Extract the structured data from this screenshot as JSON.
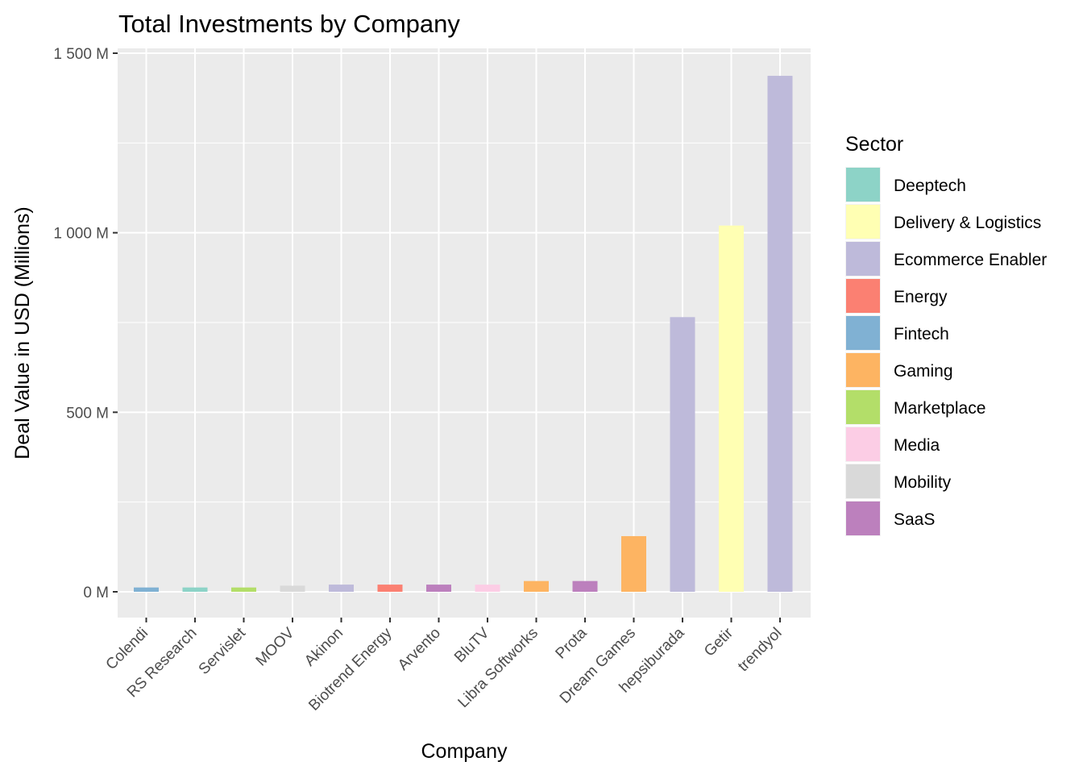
{
  "chart_data": {
    "type": "bar",
    "title": "Total Investments by Company",
    "xlabel": "Company",
    "ylabel": "Deal Value in USD (Millions)",
    "ylim": [
      -60,
      1500
    ],
    "y_ticks": [
      0,
      500,
      1000,
      1500
    ],
    "y_tick_labels": [
      "0 M",
      "500 M",
      "1 000 M",
      "1 500 M"
    ],
    "grid": true,
    "legend": {
      "title": "Sector",
      "position": "right",
      "items": [
        {
          "label": "Deeptech",
          "color": "#8dd3c7"
        },
        {
          "label": "Delivery & Logistics",
          "color": "#ffffb3"
        },
        {
          "label": "Ecommerce Enabler",
          "color": "#bebada"
        },
        {
          "label": "Energy",
          "color": "#fb8072"
        },
        {
          "label": "Fintech",
          "color": "#80b1d3"
        },
        {
          "label": "Gaming",
          "color": "#fdb462"
        },
        {
          "label": "Marketplace",
          "color": "#b3de69"
        },
        {
          "label": "Media",
          "color": "#fccde5"
        },
        {
          "label": "Mobility",
          "color": "#d9d9d9"
        },
        {
          "label": "SaaS",
          "color": "#bc80bd"
        }
      ]
    },
    "categories": [
      "Colendi",
      "RS Research",
      "Servislet",
      "MOOV",
      "Akinon",
      "Biotrend Energy",
      "Arvento",
      "BluTV",
      "Libra Softworks",
      "Prota",
      "Dream Games",
      "hepsiburada",
      "Getir",
      "trendyol"
    ],
    "values": [
      12,
      12,
      12,
      17,
      20,
      20,
      20,
      20,
      30,
      30,
      155,
      765,
      1020,
      1437
    ],
    "sectors": [
      "Fintech",
      "Deeptech",
      "Marketplace",
      "Mobility",
      "Ecommerce Enabler",
      "Energy",
      "SaaS",
      "Media",
      "Gaming",
      "SaaS",
      "Gaming",
      "Ecommerce Enabler",
      "Delivery & Logistics",
      "Ecommerce Enabler"
    ]
  }
}
